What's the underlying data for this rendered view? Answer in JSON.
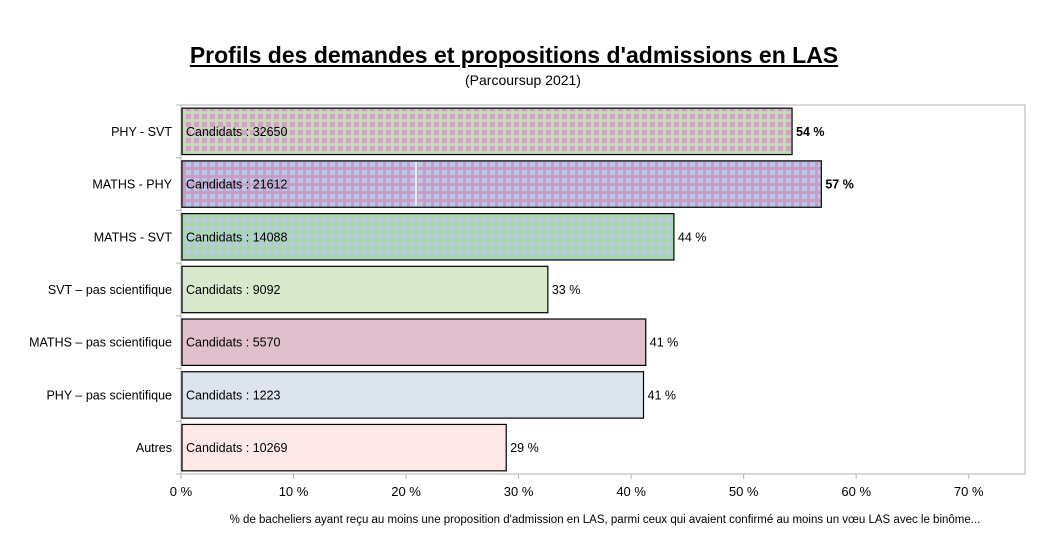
{
  "chart_data": {
    "type": "bar",
    "orientation": "horizontal",
    "title": "Profils des demandes et propositions d'admissions en LAS",
    "subtitle": "(Parcoursup 2021)",
    "xlabel": "% de bacheliers ayant reçu au moins une proposition d'admission en LAS, parmi ceux qui avaient confirmé au moins un vœu LAS avec le binôme...",
    "ylabel": "",
    "xlim": [
      0,
      75
    ],
    "xticks": [
      0,
      10,
      20,
      30,
      40,
      50,
      60,
      70
    ],
    "xtick_labels": [
      "0 %",
      "10 %",
      "20 %",
      "30 %",
      "40 %",
      "50 %",
      "60 %",
      "70 %"
    ],
    "grid": false,
    "legend": "none",
    "categories": [
      "PHY - SVT",
      "MATHS - PHY",
      "MATHS - SVT",
      "SVT – pas scientifique",
      "MATHS – pas scientifique",
      "PHY – pas scientifique",
      "Autres"
    ],
    "values": [
      54.3,
      56.9,
      43.8,
      32.6,
      41.3,
      41.1,
      28.9
    ],
    "data_labels": [
      "54 %",
      "57 %",
      "44 %",
      "33 %",
      "41 %",
      "41 %",
      "29 %"
    ],
    "data_labels_bold": [
      true,
      true,
      false,
      false,
      false,
      false,
      false
    ],
    "inner_label_prefix": "Candidats :",
    "candidates": [
      "32650",
      "21612",
      "14088",
      "9092",
      "5570",
      "1223",
      "10269"
    ],
    "bar_styles": [
      {
        "pattern": "squares",
        "background": "#c4dcb4",
        "foreground": "#d0a0c8"
      },
      {
        "pattern": "grid",
        "background": "#b8c8e8",
        "foreground": "#cc9cc4"
      },
      {
        "pattern": "grid",
        "background": "#b8cce0",
        "foreground": "#a8d8a8"
      },
      {
        "pattern": "solid",
        "background": "#d8e8cc"
      },
      {
        "pattern": "solid",
        "background": "#e0c0cc"
      },
      {
        "pattern": "solid",
        "background": "#dce4ee"
      },
      {
        "pattern": "solid",
        "background": "#ffe8e8"
      }
    ]
  }
}
